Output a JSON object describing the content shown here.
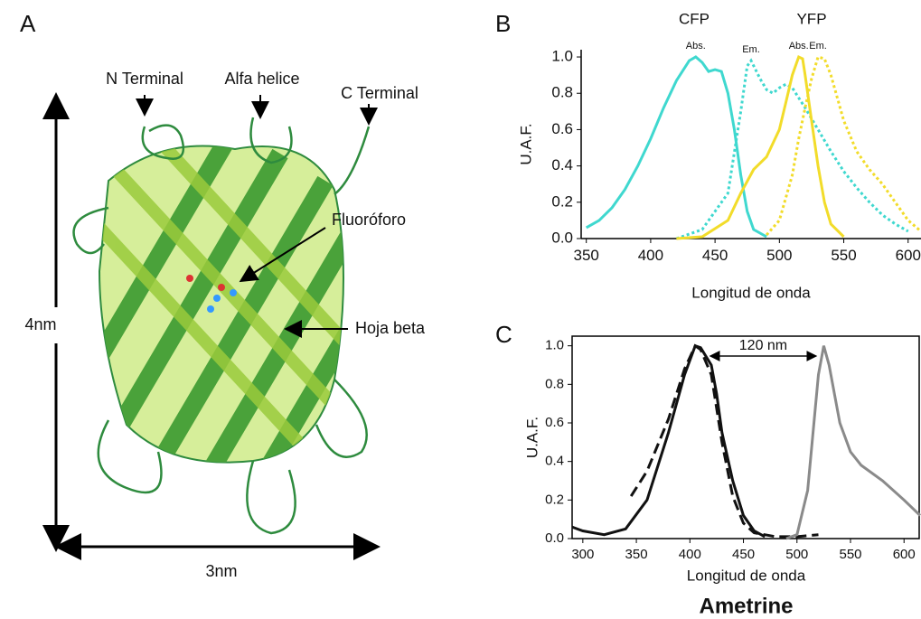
{
  "panel_a": {
    "label": "A",
    "annotations": [
      "N Terminal",
      "Alfa helice",
      "C Terminal",
      "Fluoróforo",
      "Hoja beta"
    ],
    "height": "4nm",
    "width": "3nm"
  },
  "chart_data": [
    {
      "type": "line",
      "panel_label": "B",
      "annotations": [
        "CFP",
        "YFP"
      ],
      "x_label": "Longitud de onda",
      "y_label": "U.A.F.",
      "xlim": [
        346,
        610
      ],
      "ylim": [
        0,
        1.04
      ],
      "xticks": [
        350,
        400,
        450,
        500,
        550,
        600
      ],
      "yticks": [
        {
          "value": 0,
          "label": "0.0"
        },
        0.2,
        0.4,
        0.6,
        0.8,
        {
          "value": 1,
          "label": "1.0"
        }
      ],
      "frame": false,
      "series": [
        {
          "label": "Abs.",
          "color": "#3fd8cf",
          "dash": "solid",
          "x": [
            350,
            360,
            370,
            380,
            390,
            400,
            410,
            420,
            430,
            435,
            440,
            445,
            450,
            455,
            460,
            465,
            470,
            475,
            480,
            490
          ],
          "values": [
            0.06,
            0.1,
            0.17,
            0.27,
            0.4,
            0.55,
            0.72,
            0.87,
            0.98,
            1.0,
            0.97,
            0.92,
            0.93,
            0.92,
            0.8,
            0.6,
            0.35,
            0.15,
            0.05,
            0.01
          ]
        },
        {
          "label": "Em.",
          "color": "#3fd8cf",
          "dash": "dotted",
          "x": [
            420,
            440,
            460,
            470,
            475,
            478,
            485,
            490,
            495,
            500,
            505,
            510,
            520,
            530,
            540,
            550,
            560,
            570,
            580,
            590,
            600
          ],
          "values": [
            0,
            0.05,
            0.25,
            0.7,
            0.95,
            0.98,
            0.88,
            0.82,
            0.8,
            0.83,
            0.85,
            0.83,
            0.72,
            0.6,
            0.48,
            0.37,
            0.28,
            0.2,
            0.13,
            0.08,
            0.04
          ]
        },
        {
          "label": "Abs.",
          "color": "#f2dc2a",
          "dash": "solid",
          "x": [
            420,
            440,
            460,
            470,
            480,
            490,
            500,
            505,
            510,
            515,
            518,
            520,
            525,
            530,
            535,
            540,
            550
          ],
          "values": [
            0,
            0.01,
            0.1,
            0.25,
            0.38,
            0.45,
            0.6,
            0.75,
            0.9,
            1.0,
            0.99,
            0.9,
            0.65,
            0.4,
            0.2,
            0.08,
            0.01
          ]
        },
        {
          "label": "Em.",
          "color": "#f2dc2a",
          "dash": "dotted",
          "x": [
            490,
            500,
            510,
            515,
            520,
            525,
            530,
            535,
            540,
            550,
            560,
            570,
            580,
            590,
            600,
            610
          ],
          "values": [
            0.02,
            0.1,
            0.35,
            0.55,
            0.72,
            0.88,
            1.0,
            0.99,
            0.9,
            0.65,
            0.48,
            0.38,
            0.3,
            0.2,
            0.1,
            0.04
          ]
        }
      ]
    },
    {
      "type": "line",
      "panel_label": "C",
      "title": "Ametrine",
      "annotations": [
        "120 nm"
      ],
      "x_label": "Longitud de onda",
      "y_label": "U.A.F.",
      "xlim": [
        290,
        615
      ],
      "ylim": [
        0,
        1.05
      ],
      "xticks": [
        300,
        350,
        400,
        450,
        500,
        550,
        600
      ],
      "yticks": [
        {
          "value": 0,
          "label": "0.0"
        },
        0.2,
        0.4,
        0.6,
        0.8,
        {
          "value": 1,
          "label": "1.0"
        }
      ],
      "frame": true,
      "series": [
        {
          "color": "#111111",
          "dash": "solid",
          "x": [
            290,
            300,
            320,
            340,
            360,
            380,
            395,
            405,
            410,
            420,
            425,
            430,
            440,
            450,
            460,
            470
          ],
          "values": [
            0.06,
            0.04,
            0.02,
            0.05,
            0.2,
            0.55,
            0.85,
            1.0,
            0.99,
            0.9,
            0.75,
            0.55,
            0.3,
            0.12,
            0.04,
            0.01
          ]
        },
        {
          "color": "#111111",
          "dash": "dashed",
          "x": [
            345,
            360,
            380,
            395,
            405,
            410,
            420,
            430,
            440,
            450,
            460,
            480,
            500,
            520
          ],
          "values": [
            0.22,
            0.35,
            0.62,
            0.88,
            1.0,
            0.98,
            0.85,
            0.5,
            0.22,
            0.08,
            0.03,
            0.01,
            0.01,
            0.02
          ]
        },
        {
          "color": "#8a8a8a",
          "dash": "solid",
          "x": [
            490,
            500,
            510,
            520,
            525,
            530,
            540,
            550,
            560,
            580,
            600,
            615
          ],
          "values": [
            0,
            0.02,
            0.25,
            0.85,
            1.0,
            0.9,
            0.6,
            0.45,
            0.38,
            0.3,
            0.2,
            0.12
          ]
        }
      ]
    }
  ]
}
